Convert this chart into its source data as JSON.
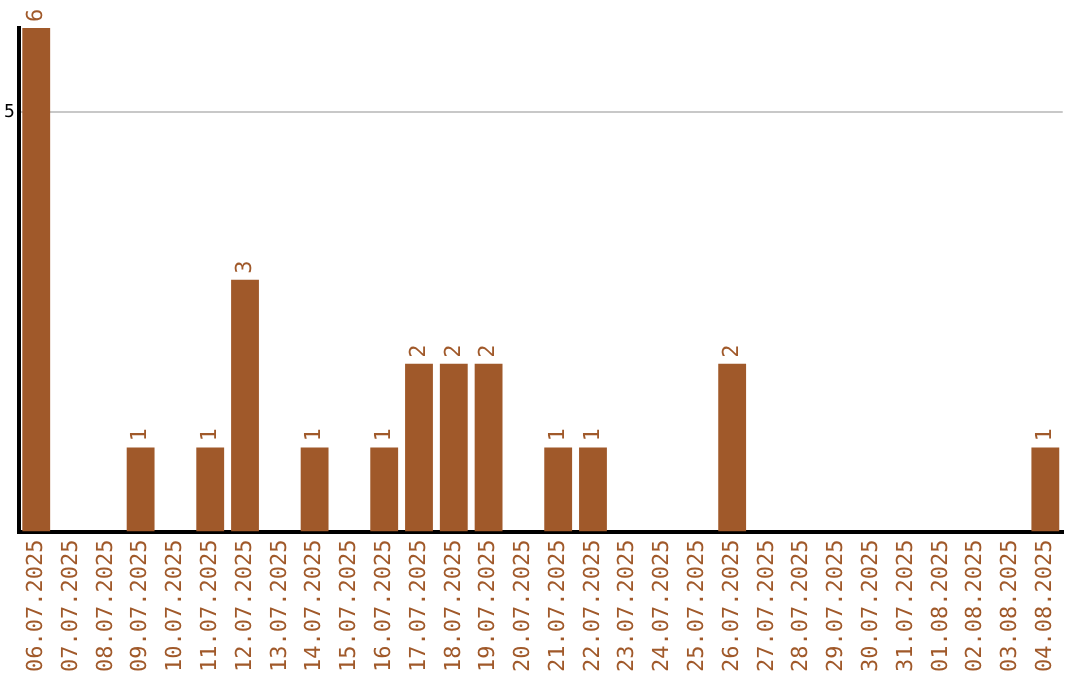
{
  "chart_data": {
    "type": "bar",
    "categories": [
      "06.07.2025",
      "07.07.2025",
      "08.07.2025",
      "09.07.2025",
      "10.07.2025",
      "11.07.2025",
      "12.07.2025",
      "13.07.2025",
      "14.07.2025",
      "15.07.2025",
      "16.07.2025",
      "17.07.2025",
      "18.07.2025",
      "19.07.2025",
      "20.07.2025",
      "21.07.2025",
      "22.07.2025",
      "23.07.2025",
      "24.07.2025",
      "25.07.2025",
      "26.07.2025",
      "27.07.2025",
      "28.07.2025",
      "29.07.2025",
      "30.07.2025",
      "31.07.2025",
      "01.08.2025",
      "02.08.2025",
      "03.08.2025",
      "04.08.2025"
    ],
    "values": [
      6,
      0,
      0,
      1,
      0,
      1,
      3,
      0,
      1,
      0,
      1,
      2,
      2,
      2,
      0,
      1,
      1,
      0,
      0,
      0,
      2,
      0,
      0,
      0,
      0,
      0,
      0,
      0,
      0,
      1
    ],
    "value_labels": [
      "6",
      null,
      null,
      "1",
      null,
      "1",
      "3",
      null,
      "1",
      null,
      "1",
      "2",
      "2",
      "2",
      null,
      "1",
      "1",
      null,
      null,
      null,
      "2",
      null,
      null,
      null,
      null,
      null,
      null,
      null,
      null,
      "1"
    ],
    "color": "#a0592a",
    "ylim": [
      0,
      6
    ],
    "yticks": [
      5
    ],
    "grid": "y",
    "legend": false
  }
}
